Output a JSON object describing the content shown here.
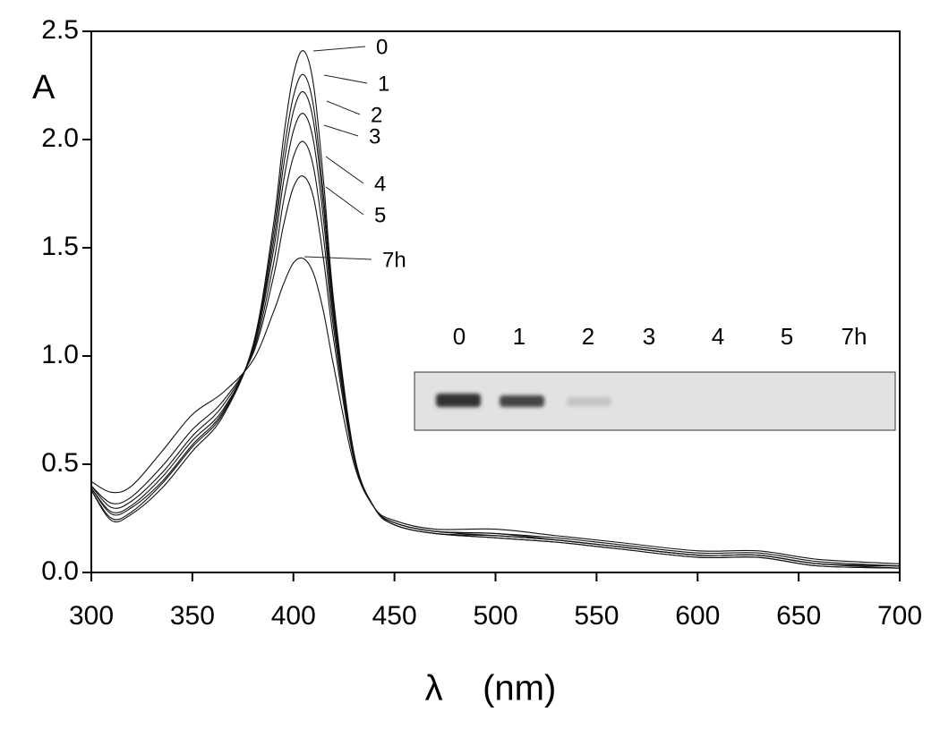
{
  "chart_data": {
    "type": "line",
    "xlabel": "λ    (nm)",
    "ylabel": "A",
    "x": [
      300,
      310,
      320,
      335,
      350,
      365,
      380,
      390,
      395,
      400,
      405,
      410,
      415,
      420,
      430,
      440,
      450,
      470,
      500,
      530,
      560,
      600,
      630,
      660,
      700
    ],
    "series": [
      {
        "name": "0",
        "color": "#111111",
        "values": [
          0.38,
          0.24,
          0.27,
          0.39,
          0.56,
          0.72,
          1.05,
          1.6,
          2.0,
          2.3,
          2.41,
          2.25,
          1.8,
          1.25,
          0.55,
          0.3,
          0.22,
          0.18,
          0.16,
          0.14,
          0.11,
          0.07,
          0.07,
          0.03,
          0.02
        ]
      },
      {
        "name": "1",
        "color": "#111111",
        "values": [
          0.38,
          0.25,
          0.28,
          0.41,
          0.58,
          0.73,
          1.04,
          1.56,
          1.93,
          2.2,
          2.3,
          2.15,
          1.73,
          1.22,
          0.54,
          0.3,
          0.22,
          0.18,
          0.16,
          0.14,
          0.11,
          0.07,
          0.07,
          0.03,
          0.02
        ]
      },
      {
        "name": "2",
        "color": "#111111",
        "values": [
          0.39,
          0.27,
          0.3,
          0.42,
          0.59,
          0.74,
          1.04,
          1.52,
          1.87,
          2.13,
          2.22,
          2.08,
          1.68,
          1.19,
          0.54,
          0.3,
          0.22,
          0.18,
          0.17,
          0.15,
          0.12,
          0.08,
          0.08,
          0.04,
          0.02
        ]
      },
      {
        "name": "3",
        "color": "#111111",
        "values": [
          0.39,
          0.28,
          0.31,
          0.44,
          0.61,
          0.75,
          1.03,
          1.48,
          1.8,
          2.04,
          2.12,
          1.99,
          1.62,
          1.16,
          0.54,
          0.3,
          0.23,
          0.19,
          0.17,
          0.15,
          0.12,
          0.08,
          0.08,
          0.04,
          0.03
        ]
      },
      {
        "name": "4",
        "color": "#111111",
        "values": [
          0.4,
          0.3,
          0.33,
          0.46,
          0.63,
          0.77,
          1.02,
          1.42,
          1.71,
          1.92,
          1.99,
          1.87,
          1.54,
          1.12,
          0.53,
          0.3,
          0.23,
          0.19,
          0.18,
          0.15,
          0.12,
          0.08,
          0.08,
          0.04,
          0.03
        ]
      },
      {
        "name": "5",
        "color": "#111111",
        "values": [
          0.4,
          0.32,
          0.35,
          0.49,
          0.66,
          0.79,
          1.01,
          1.36,
          1.6,
          1.78,
          1.83,
          1.73,
          1.44,
          1.07,
          0.52,
          0.3,
          0.23,
          0.19,
          0.18,
          0.16,
          0.13,
          0.09,
          0.09,
          0.05,
          0.03
        ]
      },
      {
        "name": "7h",
        "color": "#111111",
        "values": [
          0.42,
          0.37,
          0.4,
          0.56,
          0.73,
          0.83,
          0.98,
          1.2,
          1.33,
          1.43,
          1.45,
          1.38,
          1.2,
          0.95,
          0.5,
          0.3,
          0.24,
          0.2,
          0.2,
          0.17,
          0.14,
          0.1,
          0.1,
          0.06,
          0.04
        ]
      }
    ],
    "xlim": [
      300,
      700
    ],
    "xticks": [
      300,
      350,
      400,
      450,
      500,
      550,
      600,
      650,
      700
    ],
    "ylim": [
      0,
      2.5
    ],
    "yticks": [
      {
        "value": 0,
        "label": "0.0"
      },
      0.5,
      {
        "value": 1,
        "label": "1.0"
      },
      1.5,
      {
        "value": 2,
        "label": "2.0"
      },
      2.5
    ],
    "inset_lanes": [
      "0",
      "1",
      "2",
      "3",
      "4",
      "5",
      "7h"
    ]
  }
}
